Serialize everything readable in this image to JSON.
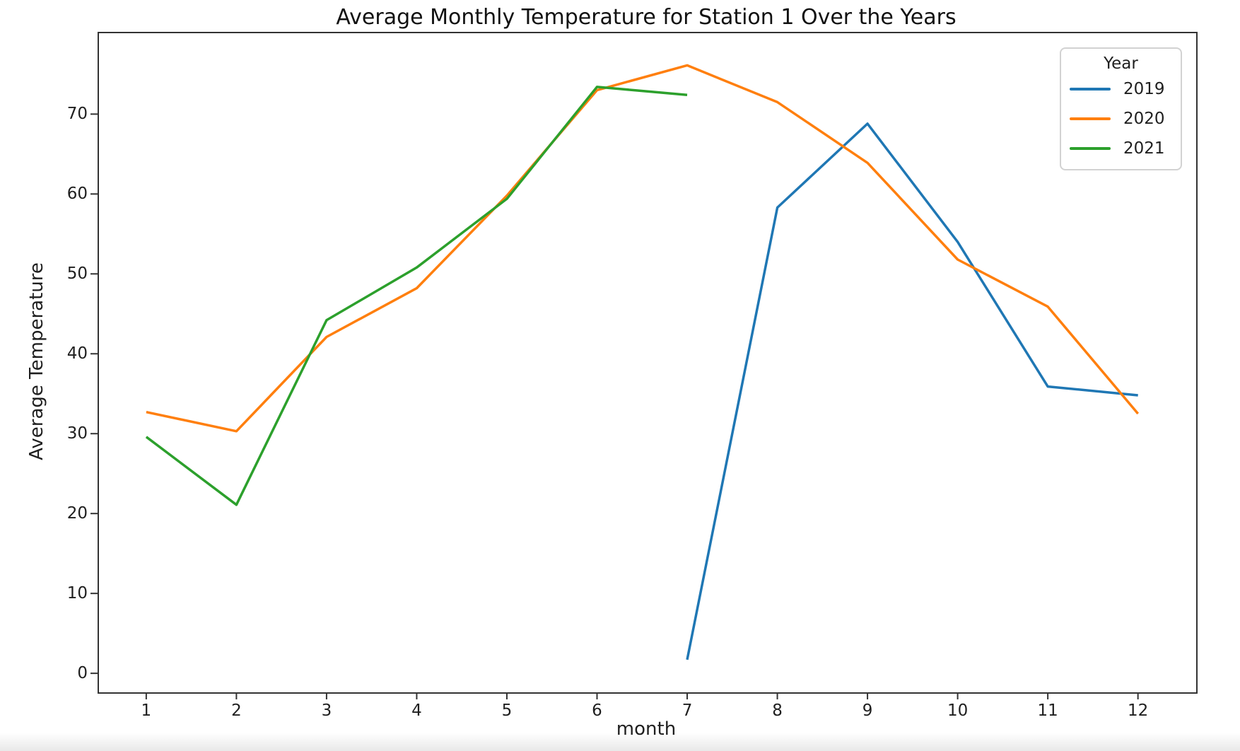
{
  "figure": {
    "background": "#ffffff",
    "spine_color": "#333333",
    "text_color": "#1f1f1f"
  },
  "chart_data": {
    "type": "line",
    "title": "Average Monthly Temperature for Station 1 Over the Years",
    "xlabel": "month",
    "ylabel": "Average Temperature",
    "x_ticks": [
      1,
      2,
      3,
      4,
      5,
      6,
      7,
      8,
      9,
      10,
      11,
      12
    ],
    "y_ticks": [
      0,
      10,
      20,
      30,
      40,
      50,
      60,
      70
    ],
    "xlim": [
      0.46,
      12.63
    ],
    "ylim": [
      -2.2,
      80.3
    ],
    "grid": false,
    "legend": {
      "title": "Year",
      "position": "upper right"
    },
    "series": [
      {
        "name": "2019",
        "color": "#1f77b4",
        "x": [
          7,
          8,
          9,
          10,
          11,
          12
        ],
        "y": [
          1.7,
          58.3,
          68.8,
          54.0,
          35.9,
          34.8
        ]
      },
      {
        "name": "2020",
        "color": "#ff7f0e",
        "x": [
          1,
          2,
          3,
          4,
          5,
          6,
          7,
          8,
          9,
          10,
          11,
          12
        ],
        "y": [
          32.7,
          30.3,
          42.1,
          48.2,
          59.8,
          73.0,
          76.1,
          71.5,
          63.9,
          51.8,
          45.9,
          32.5
        ]
      },
      {
        "name": "2021",
        "color": "#2ca02c",
        "x": [
          1,
          2,
          3,
          4,
          5,
          6,
          7
        ],
        "y": [
          29.6,
          21.1,
          44.2,
          50.8,
          59.4,
          73.4,
          72.4
        ]
      }
    ]
  }
}
